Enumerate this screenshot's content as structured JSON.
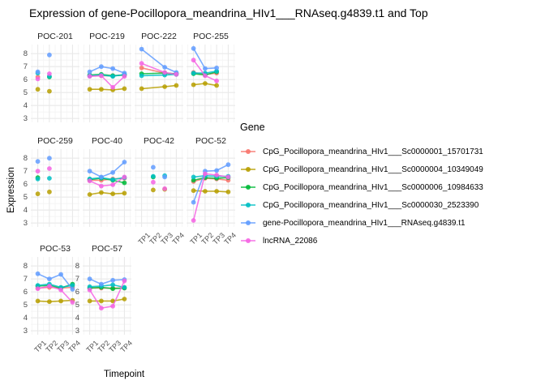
{
  "title": "Expression of gene-Pocillopora_meandrina_HIv1___RNAseq.g4839.t1 and Top",
  "axes": {
    "x_title": "Timepoint",
    "y_title": "Expression"
  },
  "legend": {
    "title": "Gene",
    "entries": [
      {
        "label": "CpG_Pocillopora_meandrina_HIv1___Sc0000001_15701731",
        "color": "#F8766D"
      },
      {
        "label": "CpG_Pocillopora_meandrina_HIv1___Sc0000004_10349049",
        "color": "#B79F00"
      },
      {
        "label": "CpG_Pocillopora_meandrina_HIv1___Sc0000006_10984633",
        "color": "#00BA38"
      },
      {
        "label": "CpG_Pocillopora_meandrina_HIv1___Sc0000030_2523390",
        "color": "#00BFC4"
      },
      {
        "label": "gene-Pocillopora_meandrina_HIv1___RNAseq.g4839.t1",
        "color": "#619CFF"
      },
      {
        "label": "lncRNA_22086",
        "color": "#F564E3"
      }
    ]
  },
  "chart_data": {
    "type": "line",
    "title": "Expression of gene-Pocillopora_meandrina_HIv1___RNAseq.g4839.t1 and Top",
    "xlabel": "Timepoint",
    "ylabel": "Expression",
    "x_categories": [
      "TP1",
      "TP2",
      "TP3",
      "TP4"
    ],
    "y_ticks": [
      3,
      4,
      5,
      6,
      7,
      8
    ],
    "ylim": [
      2.7,
      8.7
    ],
    "grid": true,
    "legend_position": "right",
    "series_names": [
      "CpG_Pocillopora_meandrina_HIv1___Sc0000001_15701731",
      "CpG_Pocillopora_meandrina_HIv1___Sc0000004_10349049",
      "CpG_Pocillopora_meandrina_HIv1___Sc0000006_10984633",
      "CpG_Pocillopora_meandrina_HIv1___Sc0000030_2523390",
      "gene-Pocillopora_meandrina_HIv1___RNAseq.g4839.t1",
      "lncRNA_22086"
    ],
    "facets": [
      {
        "name": "POC-201",
        "row": 0,
        "col": 0,
        "lines": false,
        "axis_x": false,
        "axis_y": true,
        "values": [
          [
            6.2,
            null,
            null,
            null
          ],
          [
            5.25,
            5.1,
            null,
            null
          ],
          [
            null,
            6.2,
            null,
            null
          ],
          [
            6.5,
            6.25,
            null,
            null
          ],
          [
            6.6,
            7.9,
            null,
            null
          ],
          [
            6.05,
            6.45,
            null,
            null
          ]
        ]
      },
      {
        "name": "POC-219",
        "row": 0,
        "col": 1,
        "lines": true,
        "axis_x": false,
        "axis_y": false,
        "values": [
          [
            6.3,
            6.3,
            6.3,
            6.35
          ],
          [
            5.25,
            5.25,
            5.2,
            5.3
          ],
          [
            6.35,
            6.4,
            6.3,
            6.35
          ],
          [
            6.3,
            6.35,
            6.25,
            6.4
          ],
          [
            6.6,
            7.0,
            6.85,
            6.5
          ],
          [
            6.25,
            6.3,
            5.4,
            6.25
          ]
        ]
      },
      {
        "name": "POC-222",
        "row": 0,
        "col": 2,
        "lines": true,
        "axis_x": false,
        "axis_y": false,
        "values": [
          [
            6.9,
            null,
            6.5,
            6.45
          ],
          [
            5.3,
            null,
            5.45,
            5.55
          ],
          [
            6.45,
            null,
            6.5,
            6.45
          ],
          [
            6.3,
            null,
            6.35,
            6.4
          ],
          [
            8.35,
            null,
            6.95,
            6.55
          ],
          [
            7.25,
            null,
            6.55,
            6.4
          ]
        ]
      },
      {
        "name": "POC-255",
        "row": 0,
        "col": 3,
        "lines": true,
        "axis_x": false,
        "axis_y": false,
        "values": [
          [
            6.55,
            6.4,
            6.5,
            null
          ],
          [
            5.6,
            5.7,
            5.55,
            null
          ],
          [
            6.45,
            6.35,
            6.6,
            null
          ],
          [
            6.5,
            6.5,
            6.65,
            null
          ],
          [
            8.4,
            6.85,
            6.9,
            null
          ],
          [
            7.5,
            6.3,
            5.9,
            null
          ]
        ]
      },
      {
        "name": "POC-259",
        "row": 1,
        "col": 0,
        "lines": false,
        "axis_x": false,
        "axis_y": true,
        "values": [
          [
            null,
            null,
            null,
            null
          ],
          [
            5.25,
            5.4,
            null,
            null
          ],
          [
            6.5,
            null,
            null,
            null
          ],
          [
            6.4,
            6.45,
            null,
            null
          ],
          [
            7.75,
            8.0,
            null,
            null
          ],
          [
            7.0,
            7.2,
            null,
            null
          ]
        ]
      },
      {
        "name": "POC-40",
        "row": 1,
        "col": 1,
        "lines": true,
        "axis_x": false,
        "axis_y": false,
        "values": [
          [
            6.3,
            6.3,
            6.4,
            6.45
          ],
          [
            5.2,
            5.35,
            5.25,
            5.3
          ],
          [
            6.35,
            6.45,
            6.3,
            6.1
          ],
          [
            6.4,
            6.5,
            6.35,
            6.5
          ],
          [
            7.0,
            6.55,
            6.9,
            7.7
          ],
          [
            6.25,
            5.85,
            5.95,
            6.55
          ]
        ]
      },
      {
        "name": "POC-42",
        "row": 1,
        "col": 2,
        "lines": false,
        "axis_x": true,
        "axis_y": false,
        "values": [
          [
            null,
            null,
            null,
            null
          ],
          [
            null,
            5.55,
            5.6,
            null
          ],
          [
            null,
            6.55,
            null,
            null
          ],
          [
            null,
            6.6,
            6.65,
            null
          ],
          [
            null,
            7.3,
            6.55,
            null
          ],
          [
            null,
            6.15,
            5.65,
            null
          ]
        ]
      },
      {
        "name": "POC-52",
        "row": 1,
        "col": 3,
        "lines": true,
        "axis_x": true,
        "axis_y": false,
        "values": [
          [
            6.2,
            6.45,
            6.4,
            6.3
          ],
          [
            5.5,
            5.45,
            5.45,
            5.4
          ],
          [
            6.3,
            6.5,
            6.45,
            6.5
          ],
          [
            6.55,
            6.65,
            6.6,
            6.6
          ],
          [
            4.6,
            7.0,
            7.05,
            7.5
          ],
          [
            3.2,
            6.8,
            6.7,
            6.55
          ]
        ]
      },
      {
        "name": "POC-53",
        "row": 2,
        "col": 0,
        "lines": true,
        "axis_x": true,
        "axis_y": true,
        "values": [
          [
            6.3,
            6.35,
            6.3,
            6.35
          ],
          [
            5.3,
            5.25,
            5.3,
            5.35
          ],
          [
            6.45,
            6.5,
            6.3,
            6.6
          ],
          [
            6.5,
            6.6,
            6.35,
            6.5
          ],
          [
            7.4,
            7.0,
            7.35,
            6.2
          ],
          [
            6.25,
            6.45,
            6.15,
            5.2
          ]
        ]
      },
      {
        "name": "POC-57",
        "row": 2,
        "col": 1,
        "lines": true,
        "axis_x": true,
        "axis_y": true,
        "values": [
          [
            6.3,
            6.3,
            6.3,
            6.3
          ],
          [
            5.3,
            5.3,
            5.3,
            5.45
          ],
          [
            6.3,
            6.35,
            6.25,
            6.3
          ],
          [
            6.4,
            6.45,
            6.55,
            6.35
          ],
          [
            7.0,
            6.6,
            6.9,
            6.95
          ],
          [
            6.15,
            4.75,
            4.9,
            6.85
          ]
        ]
      }
    ]
  }
}
